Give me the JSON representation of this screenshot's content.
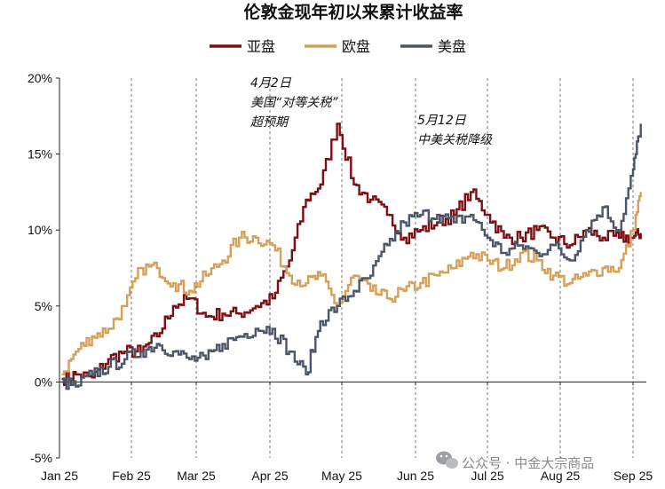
{
  "chart_data": {
    "type": "line",
    "title": "伦敦金现年初以来累计收益率",
    "xlabel": "",
    "ylabel": "",
    "ylim": [
      -5,
      20
    ],
    "y_ticks": [
      "20%",
      "15%",
      "10%",
      "5%",
      "0%",
      "-5%"
    ],
    "y_tick_values": [
      20,
      15,
      10,
      5,
      0,
      -5
    ],
    "x_ticks": [
      "Jan 25",
      "Feb 25",
      "Mar 25",
      "Apr 25",
      "May 25",
      "Jun 25",
      "Jul 25",
      "Aug 25",
      "Sep 25"
    ],
    "x_tick_dates": [
      "2025-01-01",
      "2025-02-01",
      "2025-03-01",
      "2025-04-01",
      "2025-05-01",
      "2025-06-01",
      "2025-07-01",
      "2025-08-01",
      "2025-09-01"
    ],
    "x_range": [
      "2025-01-01",
      "2025-09-07"
    ],
    "grid": "vertical-dashed",
    "legend_position": "top-center",
    "series": [
      {
        "name": "亚盘",
        "color": "#7b0f14",
        "x": [
          "2025-01-02",
          "2025-01-08",
          "2025-01-15",
          "2025-01-22",
          "2025-01-29",
          "2025-02-05",
          "2025-02-12",
          "2025-02-19",
          "2025-02-26",
          "2025-03-05",
          "2025-03-12",
          "2025-03-19",
          "2025-03-26",
          "2025-04-02",
          "2025-04-09",
          "2025-04-16",
          "2025-04-22",
          "2025-04-29",
          "2025-05-06",
          "2025-05-13",
          "2025-05-20",
          "2025-05-27",
          "2025-06-03",
          "2025-06-10",
          "2025-06-17",
          "2025-06-24",
          "2025-07-01",
          "2025-07-08",
          "2025-07-15",
          "2025-07-22",
          "2025-07-29",
          "2025-08-05",
          "2025-08-12",
          "2025-08-19",
          "2025-08-26",
          "2025-09-01",
          "2025-09-05"
        ],
        "y": [
          0.2,
          0.5,
          0.3,
          1.5,
          2.0,
          2.0,
          3.0,
          5.0,
          5.5,
          4.3,
          4.5,
          4.5,
          5.0,
          5.5,
          8.0,
          12.0,
          13.0,
          17.0,
          13.0,
          12.0,
          11.0,
          9.5,
          10.0,
          10.5,
          11.0,
          12.5,
          11.0,
          9.5,
          9.5,
          10.0,
          9.5,
          9.0,
          10.0,
          9.5,
          9.5,
          9.5,
          9.8
        ]
      },
      {
        "name": "欧盘",
        "color": "#d4a05a",
        "x": [
          "2025-01-02",
          "2025-01-08",
          "2025-01-15",
          "2025-01-22",
          "2025-01-29",
          "2025-02-05",
          "2025-02-12",
          "2025-02-19",
          "2025-02-26",
          "2025-03-05",
          "2025-03-12",
          "2025-03-19",
          "2025-03-26",
          "2025-04-02",
          "2025-04-09",
          "2025-04-16",
          "2025-04-22",
          "2025-04-29",
          "2025-05-06",
          "2025-05-13",
          "2025-05-20",
          "2025-05-27",
          "2025-06-03",
          "2025-06-10",
          "2025-06-17",
          "2025-06-24",
          "2025-07-01",
          "2025-07-08",
          "2025-07-15",
          "2025-07-22",
          "2025-07-29",
          "2025-08-05",
          "2025-08-12",
          "2025-08-19",
          "2025-08-26",
          "2025-09-01",
          "2025-09-05"
        ],
        "y": [
          0.5,
          2.0,
          3.0,
          3.5,
          5.0,
          7.5,
          7.5,
          6.5,
          6.0,
          7.0,
          8.0,
          9.5,
          9.5,
          9.0,
          7.0,
          6.5,
          7.0,
          5.0,
          7.0,
          6.0,
          5.5,
          6.0,
          6.5,
          7.0,
          7.5,
          8.5,
          8.0,
          7.5,
          8.5,
          8.0,
          7.0,
          6.5,
          7.0,
          7.5,
          7.5,
          10.0,
          12.5
        ]
      },
      {
        "name": "美盘",
        "color": "#4a5568",
        "x": [
          "2025-01-02",
          "2025-01-08",
          "2025-01-15",
          "2025-01-22",
          "2025-01-29",
          "2025-02-05",
          "2025-02-12",
          "2025-02-19",
          "2025-02-26",
          "2025-03-05",
          "2025-03-12",
          "2025-03-19",
          "2025-03-26",
          "2025-04-02",
          "2025-04-09",
          "2025-04-16",
          "2025-04-22",
          "2025-04-29",
          "2025-05-06",
          "2025-05-13",
          "2025-05-20",
          "2025-05-27",
          "2025-06-03",
          "2025-06-10",
          "2025-06-17",
          "2025-06-24",
          "2025-07-01",
          "2025-07-08",
          "2025-07-15",
          "2025-07-22",
          "2025-07-29",
          "2025-08-05",
          "2025-08-12",
          "2025-08-19",
          "2025-08-26",
          "2025-09-01",
          "2025-09-05"
        ],
        "y": [
          0.0,
          -0.3,
          0.5,
          1.0,
          1.5,
          2.0,
          2.5,
          2.0,
          1.5,
          1.5,
          2.5,
          3.0,
          3.5,
          3.5,
          2.0,
          0.5,
          4.0,
          5.0,
          6.0,
          7.0,
          9.0,
          10.5,
          11.0,
          11.0,
          10.5,
          11.0,
          9.5,
          8.5,
          9.0,
          8.5,
          9.0,
          8.0,
          10.0,
          11.5,
          10.0,
          14.0,
          17.0
        ]
      }
    ],
    "annotations": [
      {
        "lines": [
          "4月2日",
          "美国“对等关税”",
          "超预期"
        ]
      },
      {
        "lines": [
          "5月12日",
          "中美关税降级"
        ]
      }
    ]
  },
  "watermark": {
    "icon": "wechat-icon",
    "text": "公众号 · 中金大宗商品"
  }
}
